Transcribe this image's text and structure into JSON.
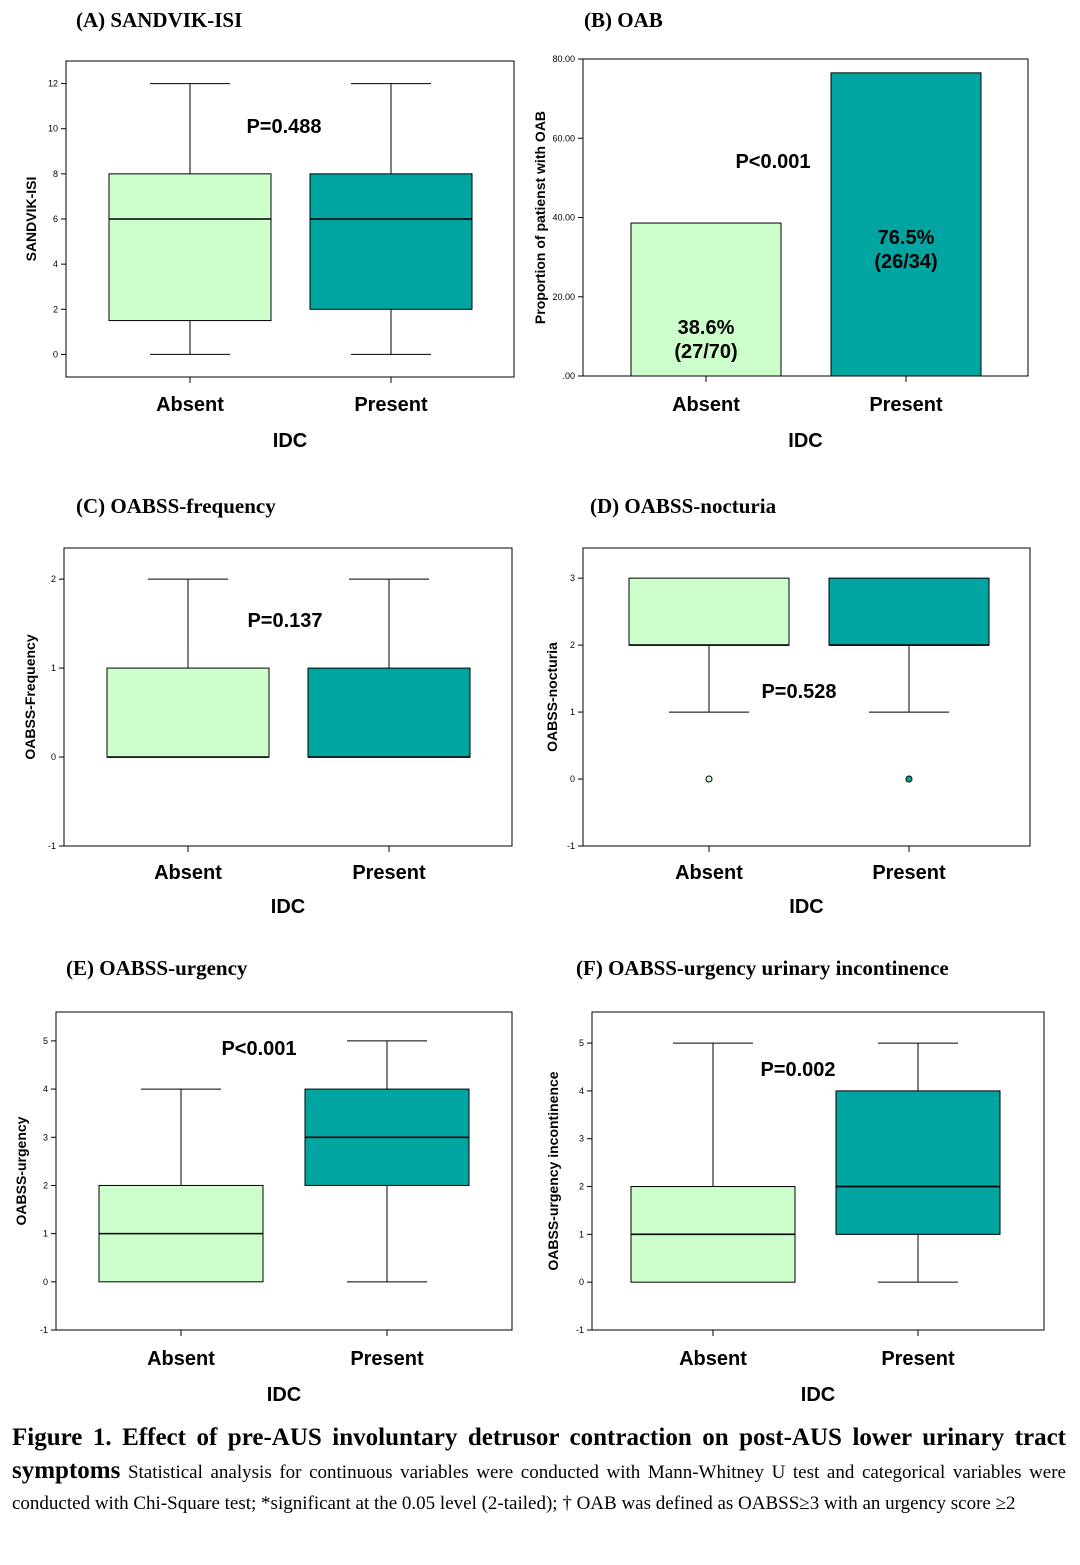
{
  "colors": {
    "absent": "#ccffcc",
    "present": "#00a5a2",
    "stroke": "#000000"
  },
  "caption": {
    "bold": "Figure 1. Effect of pre-AUS involuntary detrusor contraction on post-AUS lower urinary tract symptoms",
    "text": " Statistical analysis for continuous variables were conducted with Mann-Whitney U test and categorical variables were conducted with Chi-Square test; *significant at the 0.05 level (2-tailed); † OAB was defined as OABSS≥3 with an urgency score ≥2"
  },
  "chart_data": [
    {
      "panel": "(A)  SANDVIK-ISI",
      "type": "box",
      "xlabel": "IDC",
      "ylabel": "SANDVIK-ISI",
      "categories": [
        "Absent",
        "Present"
      ],
      "ylim": [
        -1,
        13
      ],
      "yticks": [
        0,
        2,
        4,
        6,
        8,
        10,
        12
      ],
      "ytick_labels": [
        "0",
        "2",
        "4",
        "6",
        "8",
        "10",
        "12"
      ],
      "boxes": [
        {
          "category": "Absent",
          "min": 0,
          "q1": 1.5,
          "median": 6,
          "q3": 8,
          "max": 12,
          "outliers": []
        },
        {
          "category": "Present",
          "min": 0,
          "q1": 2,
          "median": 6,
          "q3": 8,
          "max": 12,
          "outliers": []
        }
      ],
      "annotation": "P=0.488",
      "grid": false
    },
    {
      "panel": "(B)  OAB",
      "type": "bar",
      "xlabel": "IDC",
      "ylabel": "Proportion of patienst with OAB",
      "categories": [
        "Absent",
        "Present"
      ],
      "values": [
        38.6,
        76.5
      ],
      "bar_labels": [
        [
          "38.6%",
          "(27/70)"
        ],
        [
          "76.5%",
          "(26/34)"
        ]
      ],
      "ylim": [
        0,
        80
      ],
      "yticks": [
        0,
        20,
        40,
        60,
        80
      ],
      "ytick_labels": [
        ".00",
        "20.00",
        "40.00",
        "60.00",
        "80.00"
      ],
      "annotation": "P<0.001",
      "grid": false
    },
    {
      "panel": "(C) OABSS-frequency",
      "type": "box",
      "xlabel": "IDC",
      "ylabel": "OABSS-Frequency",
      "categories": [
        "Absent",
        "Present"
      ],
      "ylim": [
        -1,
        2.35
      ],
      "yticks": [
        -1,
        0,
        1,
        2
      ],
      "ytick_labels": [
        "-1",
        "0",
        "1",
        "2"
      ],
      "boxes": [
        {
          "category": "Absent",
          "min": 0,
          "q1": 0,
          "median": 0,
          "q3": 1,
          "max": 2,
          "outliers": []
        },
        {
          "category": "Present",
          "min": 0,
          "q1": 0,
          "median": 0,
          "q3": 1,
          "max": 2,
          "outliers": []
        }
      ],
      "annotation": "P=0.137",
      "grid": false
    },
    {
      "panel": "(D) OABSS-nocturia",
      "type": "box",
      "xlabel": "IDC",
      "ylabel": "OABSS-nocturia",
      "categories": [
        "Absent",
        "Present"
      ],
      "ylim": [
        -1,
        3.45
      ],
      "yticks": [
        -1,
        0,
        1,
        2,
        3
      ],
      "ytick_labels": [
        "-1",
        "0",
        "1",
        "2",
        "3"
      ],
      "boxes": [
        {
          "category": "Absent",
          "min": 1,
          "q1": 2,
          "median": 2,
          "q3": 3,
          "max": 3,
          "outliers": [
            0
          ]
        },
        {
          "category": "Present",
          "min": 1,
          "q1": 2,
          "median": 2,
          "q3": 3,
          "max": 3,
          "outliers": [
            0
          ]
        }
      ],
      "annotation": "P=0.528",
      "grid": false
    },
    {
      "panel": "(E) OABSS-urgency",
      "type": "box",
      "xlabel": "IDC",
      "ylabel": "OABSS-urgency",
      "categories": [
        "Absent",
        "Present"
      ],
      "ylim": [
        -1,
        5.6
      ],
      "yticks": [
        -1,
        0,
        1,
        2,
        3,
        4,
        5
      ],
      "ytick_labels": [
        "-1",
        "0",
        "1",
        "2",
        "3",
        "4",
        "5"
      ],
      "boxes": [
        {
          "category": "Absent",
          "min": 0,
          "q1": 0,
          "median": 1,
          "q3": 2,
          "max": 4,
          "outliers": []
        },
        {
          "category": "Present",
          "min": 0,
          "q1": 2,
          "median": 3,
          "q3": 4,
          "max": 5,
          "outliers": []
        }
      ],
      "annotation": "P<0.001",
      "grid": false
    },
    {
      "panel": "(F) OABSS-urgency urinary incontinence",
      "type": "box",
      "xlabel": "IDC",
      "ylabel": "OABSS-urgency incontinence",
      "categories": [
        "Absent",
        "Present"
      ],
      "ylim": [
        -1,
        5.65
      ],
      "yticks": [
        -1,
        0,
        1,
        2,
        3,
        4,
        5
      ],
      "ytick_labels": [
        "-1",
        "0",
        "1",
        "2",
        "3",
        "4",
        "5"
      ],
      "boxes": [
        {
          "category": "Absent",
          "min": 0,
          "q1": 0,
          "median": 1,
          "q3": 2,
          "max": 5,
          "outliers": []
        },
        {
          "category": "Present",
          "min": 0,
          "q1": 1,
          "median": 2,
          "q3": 4,
          "max": 5,
          "outliers": []
        }
      ],
      "annotation": "P=0.002",
      "grid": false
    }
  ]
}
